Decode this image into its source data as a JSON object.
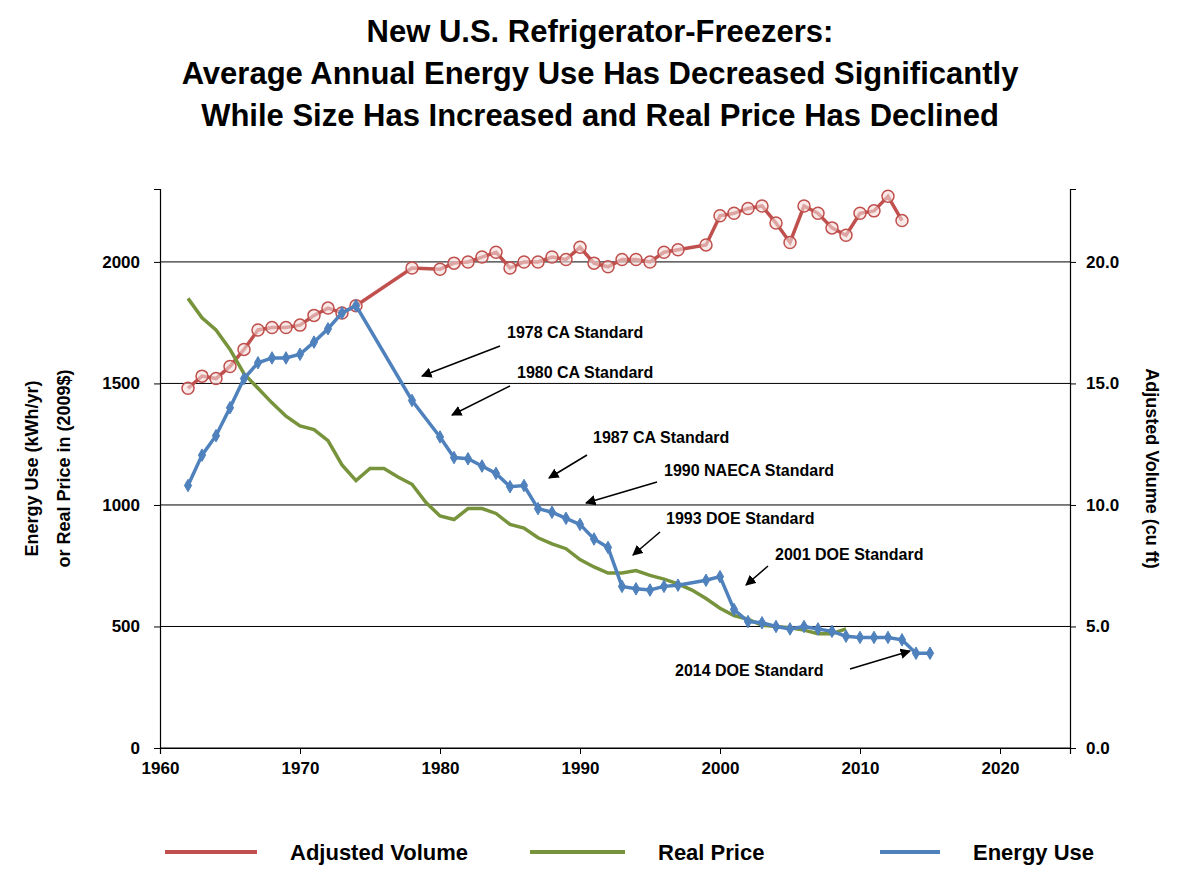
{
  "chart_data": {
    "type": "line",
    "title": [
      "New U.S. Refrigerator-Freezers:",
      "Average Annual Energy Use Has Decreased Significantly",
      "While Size Has Increased and Real Price Has Declined"
    ],
    "y_label": [
      "Energy Use (kWh/yr)",
      "or Real Price in (2009$)"
    ],
    "y2_label": "Adjusted Volume (cu ft)",
    "xlim": [
      1960,
      2025
    ],
    "xticks": [
      1960,
      1970,
      1980,
      1990,
      2000,
      2010,
      2020
    ],
    "ylim": [
      0,
      2300
    ],
    "yticks": [
      0,
      500,
      1000,
      1500,
      2000
    ],
    "y2lim": [
      0,
      23
    ],
    "y2ticks": [
      {
        "value": 0,
        "label": "0.0"
      },
      {
        "value": 5,
        "label": "5.0"
      },
      {
        "value": 10,
        "label": "10.0"
      },
      {
        "value": 15,
        "label": "15.0"
      },
      {
        "value": 20,
        "label": "20.0"
      }
    ],
    "grid": true,
    "legend": "bottom",
    "annotations": [
      "1978 CA Standard",
      "1980 CA Standard",
      "1987 CA Standard",
      "1990 NAECA Standard",
      "1993 DOE Standard",
      "2001 DOE Standard",
      "2014 DOE Standard"
    ],
    "series": [
      {
        "name": "Adjusted Volume",
        "color": "#c0504d",
        "axis": "y2",
        "marker": "circle",
        "line_style": "solid",
        "x": [
          1962,
          1963,
          1964,
          1965,
          1966,
          1967,
          1968,
          1969,
          1970,
          1971,
          1972,
          1973,
          1974,
          1978,
          1980,
          1981,
          1982,
          1983,
          1984,
          1985,
          1986,
          1987,
          1988,
          1989,
          1990,
          1991,
          1992,
          1993,
          1994,
          1995,
          1996,
          1997,
          1999,
          2000,
          2001,
          2002,
          2003,
          2004,
          2005,
          2006,
          2007,
          2008,
          2009,
          2010,
          2011,
          2012,
          2013
        ],
        "values": [
          14.8,
          15.3,
          15.2,
          15.7,
          16.4,
          17.2,
          17.3,
          17.3,
          17.4,
          17.8,
          18.1,
          17.9,
          18.2,
          19.75,
          19.7,
          19.95,
          20.0,
          20.2,
          20.4,
          19.75,
          20.0,
          20.0,
          20.2,
          20.1,
          20.6,
          19.95,
          19.8,
          20.1,
          20.1,
          20.0,
          20.4,
          20.5,
          20.7,
          21.9,
          22.0,
          22.2,
          22.3,
          21.6,
          20.8,
          22.3,
          22.0,
          21.4,
          21.1,
          22.0,
          22.1,
          22.7,
          21.7
        ]
      },
      {
        "name": "Real Price",
        "color": "#77933c",
        "marker": "none",
        "line_style": "solid",
        "x": [
          1962,
          1963,
          1964,
          1965,
          1966,
          1967,
          1968,
          1969,
          1970,
          1971,
          1972,
          1973,
          1974,
          1975,
          1976,
          1977,
          1978,
          1979,
          1980,
          1981,
          1982,
          1983,
          1984,
          1985,
          1986,
          1987,
          1988,
          1989,
          1990,
          1991,
          1992,
          1993,
          1994,
          1995,
          1996,
          1997,
          1998,
          1999,
          2000,
          2001,
          2002,
          2003,
          2004,
          2005,
          2006,
          2007,
          2008,
          2009
        ],
        "values": [
          1850,
          1770,
          1720,
          1640,
          1540,
          1480,
          1420,
          1365,
          1325,
          1310,
          1265,
          1165,
          1100,
          1150,
          1150,
          1115,
          1085,
          1010,
          955,
          940,
          985,
          985,
          965,
          920,
          905,
          865,
          840,
          820,
          775,
          745,
          720,
          720,
          730,
          710,
          695,
          675,
          650,
          615,
          575,
          545,
          530,
          505,
          500,
          495,
          485,
          470,
          470,
          490
        ]
      },
      {
        "name": "Energy Use",
        "color": "#4f81bd",
        "marker": "diamond",
        "line_style": "solid",
        "x": [
          1962,
          1963,
          1964,
          1965,
          1966,
          1967,
          1968,
          1969,
          1970,
          1971,
          1972,
          1973,
          1974,
          1978,
          1980,
          1981,
          1982,
          1983,
          1984,
          1985,
          1986,
          1987,
          1988,
          1989,
          1990,
          1991,
          1992,
          1993,
          1994,
          1995,
          1996,
          1997,
          1999,
          2000,
          2001,
          2002,
          2003,
          2004,
          2005,
          2006,
          2007,
          2008,
          2009,
          2010,
          2011,
          2012,
          2013,
          2014,
          2015
        ],
        "values": [
          1080,
          1205,
          1285,
          1400,
          1520,
          1585,
          1605,
          1605,
          1620,
          1670,
          1725,
          1790,
          1820,
          1430,
          1280,
          1195,
          1190,
          1160,
          1130,
          1075,
          1080,
          985,
          970,
          945,
          920,
          860,
          825,
          665,
          655,
          650,
          665,
          670,
          690,
          705,
          570,
          520,
          515,
          500,
          490,
          500,
          490,
          480,
          460,
          455,
          455,
          455,
          445,
          390,
          390
        ]
      }
    ]
  }
}
